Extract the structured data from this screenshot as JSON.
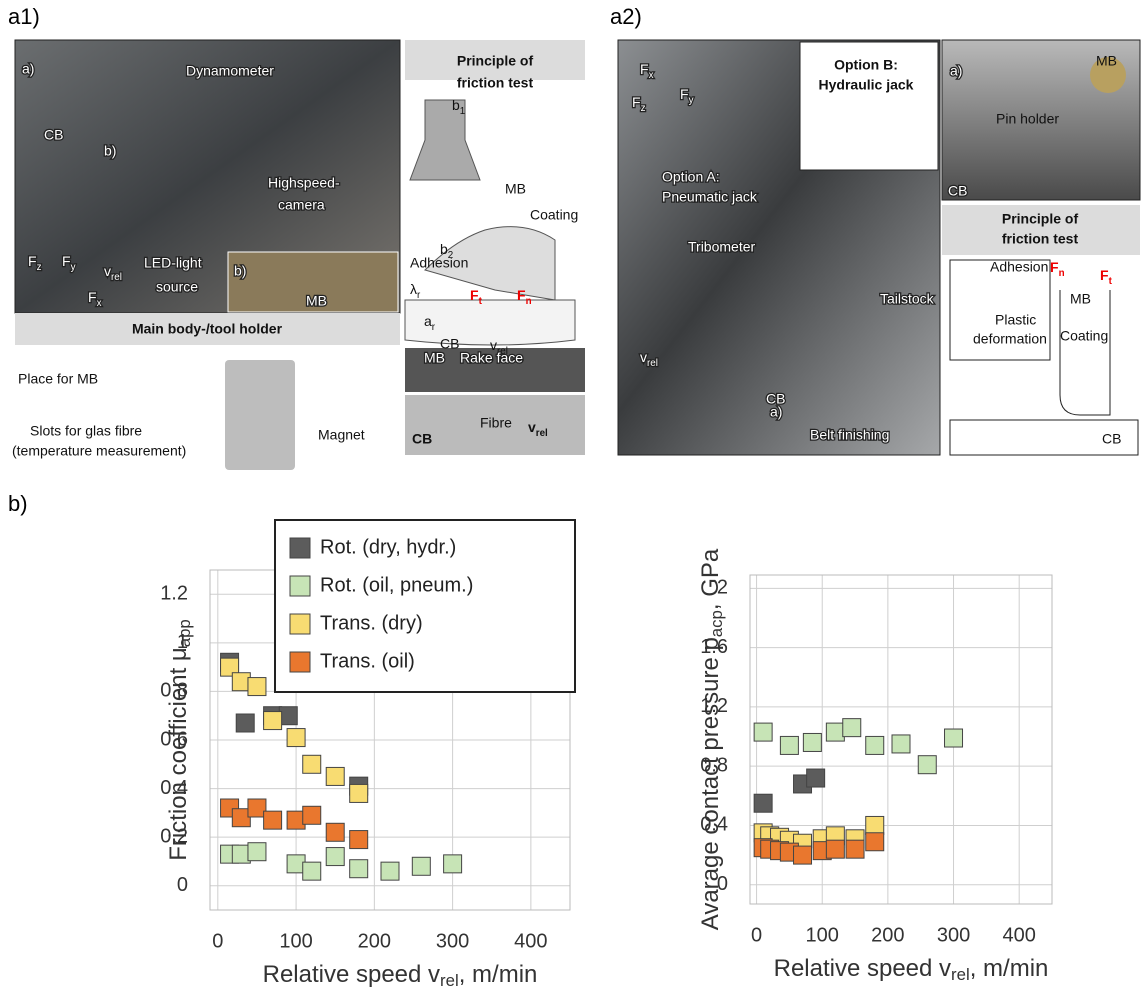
{
  "panels": {
    "a1": {
      "label": "a1)",
      "annotations": [
        "a)",
        "Dynamometer",
        "CB",
        "b)",
        "Highspeed-",
        "camera",
        {
          "text": "v",
          "sub": "rel"
        },
        "b)",
        "LED-light",
        "source",
        "MB",
        {
          "text": "F",
          "sub": "z"
        },
        {
          "text": "F",
          "sub": "y"
        },
        {
          "text": "F",
          "sub": "x"
        },
        "Main body-/tool holder",
        "Place for MB",
        "Slots for glas fibre",
        "(temperature measurement)",
        "Magnet",
        "Principle of",
        "friction test",
        {
          "text": "b",
          "sub": "1"
        },
        "MB",
        {
          "text": "b",
          "sub": "2"
        },
        "Coating",
        "Adhesion",
        {
          "text": "λ",
          "sub": "r"
        },
        {
          "text": "F",
          "sub": "t"
        },
        {
          "text": "F",
          "sub": "n"
        },
        {
          "text": "a",
          "sub": "r"
        },
        "CB",
        {
          "text": "v",
          "sub": "rel"
        },
        "MB",
        "Rake face",
        "Fibre",
        "CB",
        {
          "text": "v",
          "sub": "rel"
        }
      ]
    },
    "a2": {
      "label": "a2)",
      "annotations": [
        "Option B:",
        "Hydraulic jack",
        {
          "text": "F",
          "sub": "x"
        },
        {
          "text": "F",
          "sub": "y"
        },
        {
          "text": "F",
          "sub": "z"
        },
        "Option A:",
        "Pneumatic jack",
        "Tribometer",
        "a)",
        "Tailstock",
        {
          "text": "v",
          "sub": "rel"
        },
        "CB",
        "Belt finishing",
        "a)",
        "MB",
        "Pin holder",
        "CB",
        "Principle of",
        "friction test",
        "Adhesion",
        {
          "text": "F",
          "sub": "n"
        },
        {
          "text": "F",
          "sub": "t"
        },
        "MB",
        "Plastic",
        "deformation",
        "Coating",
        "CB"
      ]
    },
    "b": {
      "label": "b)"
    }
  },
  "chart_data": [
    {
      "type": "scatter",
      "legend": true,
      "grid": true,
      "xlabel": [
        "Relative speed v",
        "rel",
        ", m/min"
      ],
      "ylabel": [
        "Friction coefficient μ",
        "app"
      ],
      "xlim": [
        -10,
        450
      ],
      "xticks": [
        0,
        100,
        200,
        300,
        400
      ],
      "ylim": [
        -0.1,
        1.3
      ],
      "yticks": [
        0,
        0.2,
        0.4,
        0.6,
        0.8,
        1,
        1.2
      ],
      "series": [
        {
          "name": "Rot. (dry, hydr.)",
          "color": "#5c5c5c",
          "x": [
            15,
            35,
            70,
            90,
            180
          ],
          "values": [
            0.92,
            0.67,
            0.7,
            0.7,
            0.41
          ]
        },
        {
          "name": "Rot. (oil, pneum.)",
          "color": "#c7e4b6",
          "x": [
            15,
            30,
            50,
            100,
            120,
            150,
            180,
            220,
            260,
            300
          ],
          "values": [
            0.13,
            0.13,
            0.14,
            0.09,
            0.06,
            0.12,
            0.07,
            0.06,
            0.08,
            0.09
          ]
        },
        {
          "name": "Trans. (dry)",
          "color": "#f8dc72",
          "x": [
            15,
            30,
            50,
            70,
            100,
            120,
            150,
            180
          ],
          "values": [
            0.9,
            0.84,
            0.82,
            0.68,
            0.61,
            0.5,
            0.45,
            0.38
          ]
        },
        {
          "name": "Trans. (oil)",
          "color": "#e9772e",
          "x": [
            15,
            30,
            50,
            70,
            100,
            120,
            150,
            180
          ],
          "values": [
            0.32,
            0.28,
            0.32,
            0.27,
            0.27,
            0.29,
            0.22,
            0.19
          ]
        }
      ]
    },
    {
      "type": "scatter",
      "grid": true,
      "xlabel": [
        "Relative speed v",
        "rel",
        ", m/min"
      ],
      "ylabel": [
        "Avarage contact pressure p",
        "acp",
        ", GPa"
      ],
      "xlim": [
        -10,
        450
      ],
      "xticks": [
        0,
        100,
        200,
        300,
        400
      ],
      "ylim": [
        -0.13,
        2.09
      ],
      "yticks": [
        0,
        0.4,
        0.8,
        1.2,
        1.6,
        2
      ],
      "series": [
        {
          "color": "#5c5c5c",
          "x": [
            10,
            70,
            90
          ],
          "values": [
            0.55,
            0.68,
            0.72
          ]
        },
        {
          "color": "#c7e4b6",
          "x": [
            10,
            50,
            85,
            120,
            145,
            180,
            220,
            260,
            300
          ],
          "values": [
            1.03,
            0.94,
            0.96,
            1.03,
            1.06,
            0.94,
            0.95,
            0.81,
            0.99
          ]
        },
        {
          "color": "#f8dc72",
          "x": [
            10,
            20,
            35,
            50,
            70,
            100,
            120,
            150,
            180
          ],
          "values": [
            0.35,
            0.33,
            0.32,
            0.3,
            0.28,
            0.31,
            0.33,
            0.31,
            0.4
          ]
        },
        {
          "color": "#e9772e",
          "x": [
            10,
            20,
            35,
            50,
            70,
            100,
            120,
            150,
            180
          ],
          "values": [
            0.25,
            0.24,
            0.23,
            0.22,
            0.2,
            0.23,
            0.24,
            0.24,
            0.29
          ]
        }
      ]
    }
  ]
}
